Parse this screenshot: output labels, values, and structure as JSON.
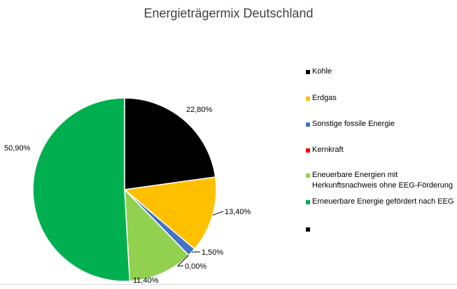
{
  "chart_data": {
    "type": "pie",
    "title": "Energieträgermix Deutschland",
    "series": [
      {
        "name": "Kohle",
        "value": 22.8,
        "label": "22,80%",
        "color": "#000000"
      },
      {
        "name": "Erdgas",
        "value": 13.4,
        "label": "13,40%",
        "color": "#ffc000"
      },
      {
        "name": "Sonstige fossile Energie",
        "value": 1.5,
        "label": "1,50%",
        "color": "#4472c4"
      },
      {
        "name": "Kernkraft",
        "value": 0.0,
        "label": "0,00%",
        "color": "#ff0000"
      },
      {
        "name": "Eneuerbare Energien mit Herkunftsnachweis ohne EEG-Förderung",
        "value": 11.4,
        "label": "11,40%",
        "color": "#92d050"
      },
      {
        "name": "Erneuerbare Energie gefördert nach EEG",
        "value": 50.9,
        "label": "50,90%",
        "color": "#00b050"
      }
    ],
    "legend_extra_entry": {
      "name": "",
      "color": "#000000"
    },
    "legend_position": "right"
  }
}
